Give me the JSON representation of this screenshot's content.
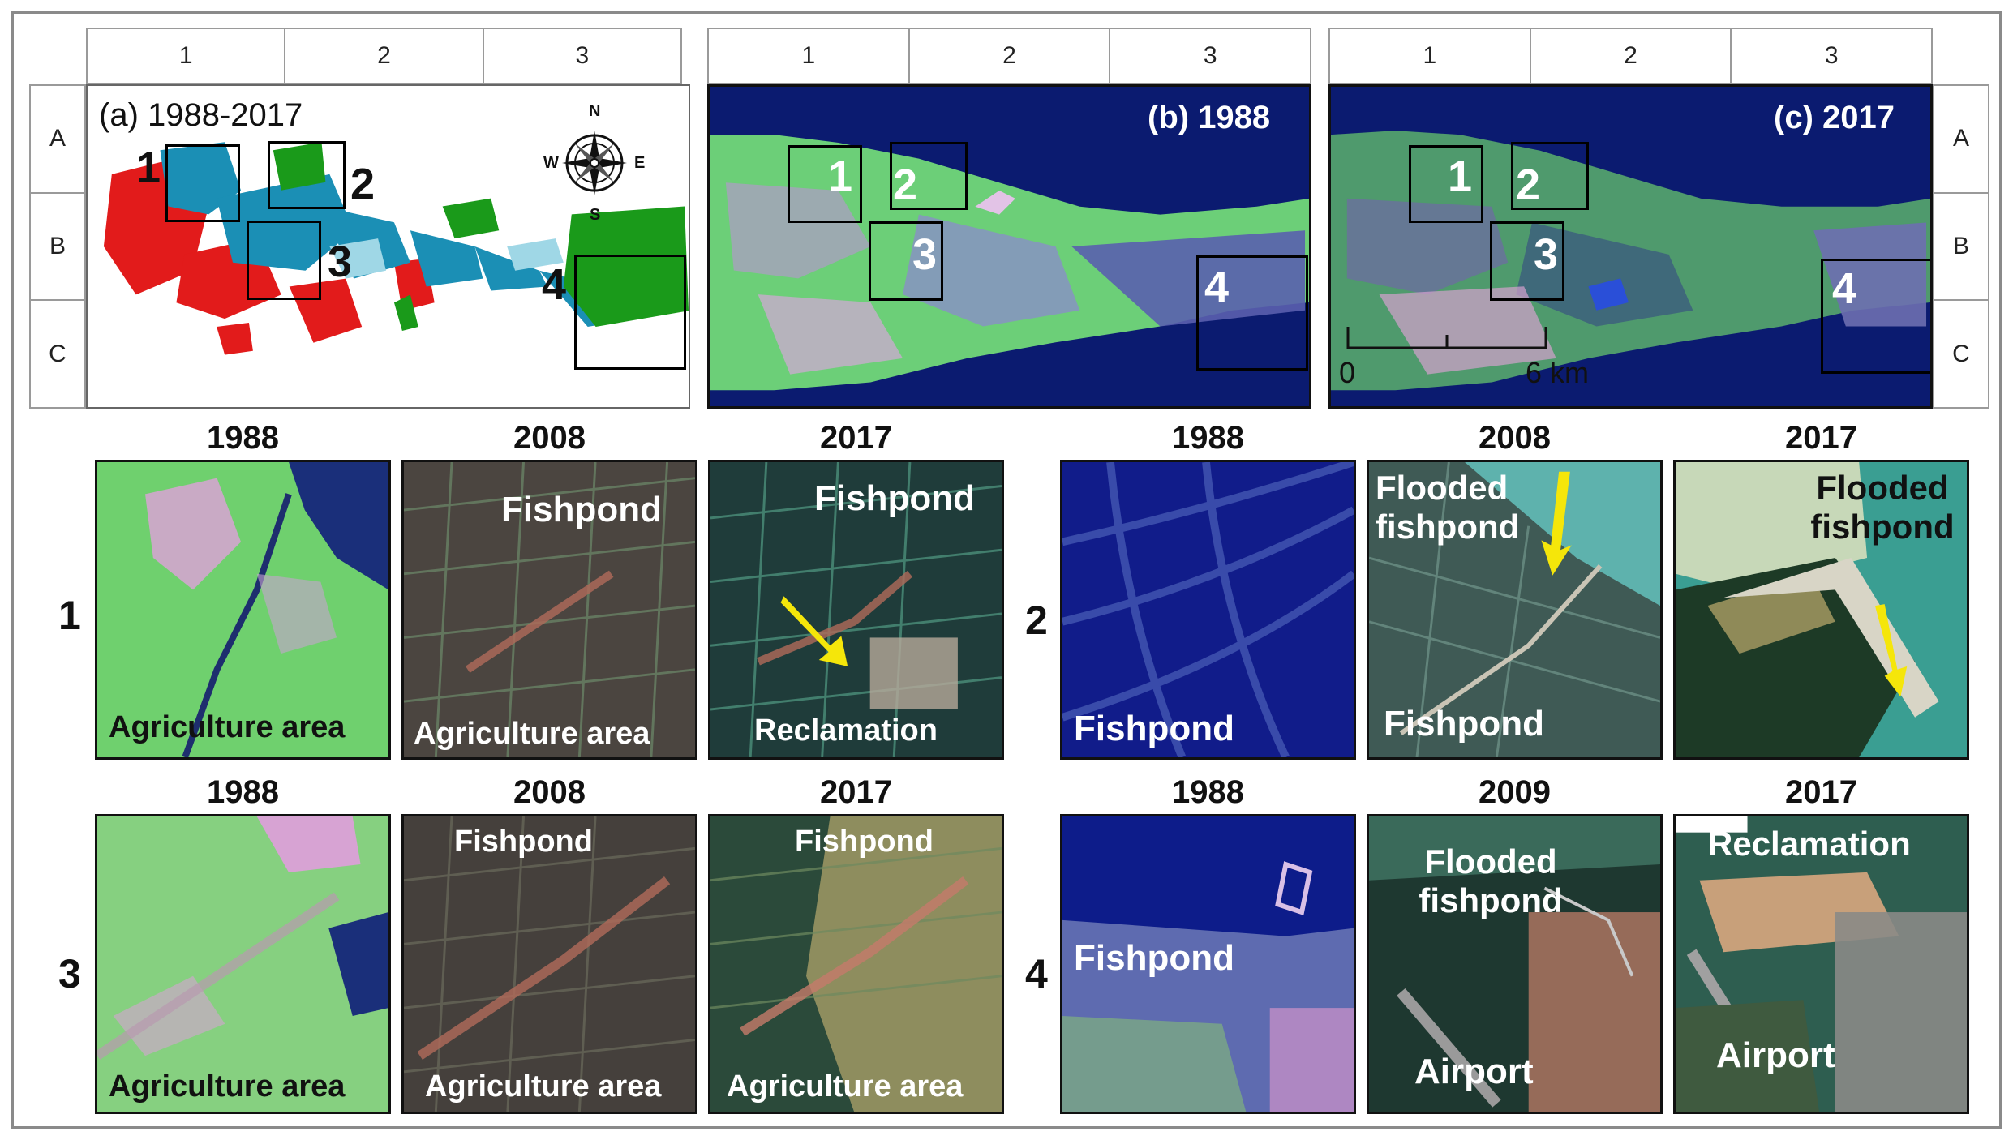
{
  "grid": {
    "columns": [
      "1",
      "2",
      "3"
    ],
    "rows": [
      "A",
      "B",
      "C"
    ]
  },
  "maps": {
    "a": {
      "title": "(a) 1988-2017",
      "compass": {
        "n": "N",
        "e": "E",
        "s": "S",
        "w": "W"
      }
    },
    "b": {
      "title": "(b) 1988"
    },
    "c": {
      "title": "(c) 2017"
    }
  },
  "box_labels": [
    "1",
    "2",
    "3",
    "4"
  ],
  "scale_bar": {
    "zero": "0",
    "max": "6 km"
  },
  "row_labels": [
    "1",
    "2",
    "3",
    "4"
  ],
  "panels": {
    "r1": [
      {
        "year": "1988",
        "labels": [
          "Agriculture area"
        ]
      },
      {
        "year": "2008",
        "labels": [
          "Fishpond",
          "Agriculture area"
        ]
      },
      {
        "year": "2017",
        "labels": [
          "Fishpond",
          "Reclamation"
        ]
      }
    ],
    "r2": [
      {
        "year": "1988",
        "labels": [
          "Fishpond"
        ]
      },
      {
        "year": "2008",
        "labels": [
          "Flooded fishpond",
          "Fishpond"
        ]
      },
      {
        "year": "2017",
        "labels": [
          "Flooded fishpond"
        ]
      }
    ],
    "r3": [
      {
        "year": "1988",
        "labels": [
          "Agriculture area"
        ]
      },
      {
        "year": "2008",
        "labels": [
          "Fishpond",
          "Agriculture area"
        ]
      },
      {
        "year": "2017",
        "labels": [
          "Fishpond",
          "Agriculture area"
        ]
      }
    ],
    "r4": [
      {
        "year": "1988",
        "labels": [
          "Fishpond"
        ]
      },
      {
        "year": "2009",
        "labels": [
          "Flooded fishpond",
          "Airport"
        ]
      },
      {
        "year": "2017",
        "labels": [
          "Reclamation",
          "Airport"
        ]
      }
    ]
  },
  "colors": {
    "sea": "#0a1a6e",
    "land": "#6fcf73",
    "change_red": "#e21b1b",
    "change_blue": "#1b8fb5",
    "change_green": "#1a9a1a",
    "arrow": "#f5e60a"
  }
}
